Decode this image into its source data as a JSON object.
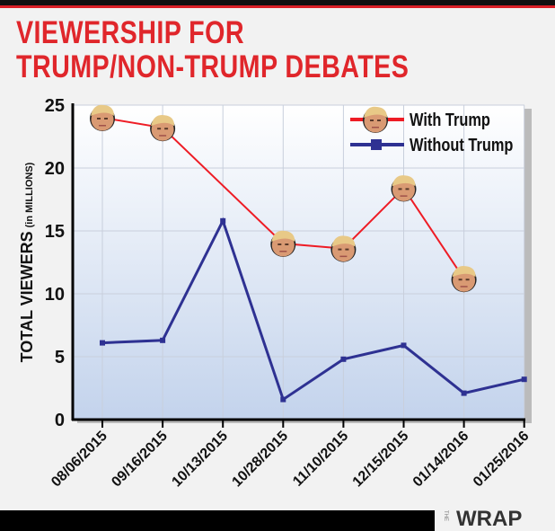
{
  "title_lines": [
    "VIEWERSHIP FOR",
    "TRUMP/NON-TRUMP DEBATES"
  ],
  "logo": {
    "prefix": "THE",
    "name": "WRAP",
    "accent": "#d92027"
  },
  "chart_data": {
    "type": "line",
    "title": "VIEWERSHIP FOR TRUMP/NON-TRUMP DEBATES",
    "ylabel": "TOTAL VIEWERS",
    "ylabel_unit": "(in MILLIONS)",
    "xlabel": "",
    "ylim": [
      0,
      25
    ],
    "yticks": [
      0,
      5,
      10,
      15,
      20,
      25
    ],
    "grid": true,
    "legend": "top-right",
    "categories": [
      "08/06/2015",
      "09/16/2015",
      "10/13/2015",
      "10/28/2015",
      "11/10/2015",
      "12/15/2015",
      "01/14/2016",
      "01/25/2016"
    ],
    "series": [
      {
        "name": "With Trump",
        "color": "#ee1c25",
        "marker": "trump-head",
        "values": [
          24.0,
          23.2,
          null,
          14.0,
          13.6,
          18.4,
          11.2,
          null
        ]
      },
      {
        "name": "Without Trump",
        "color": "#2e3192",
        "marker": "square",
        "values": [
          6.1,
          6.3,
          15.8,
          1.6,
          4.8,
          5.9,
          2.1,
          3.2
        ]
      }
    ]
  }
}
